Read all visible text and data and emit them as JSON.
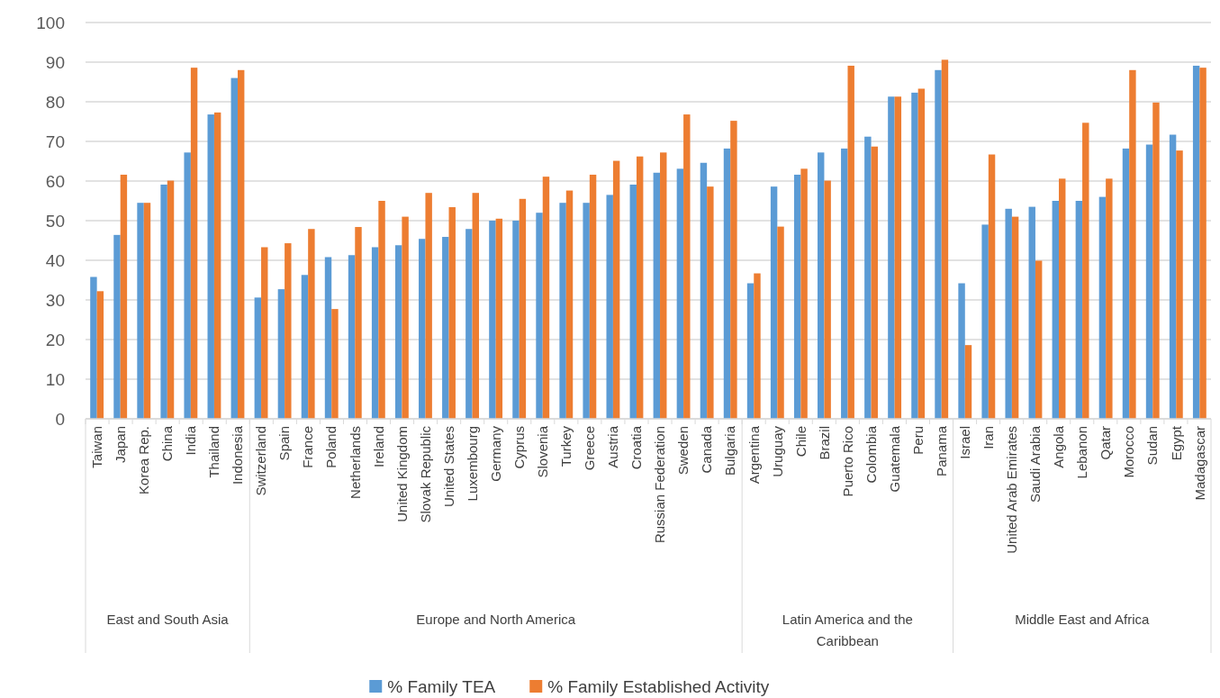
{
  "chart_data": {
    "type": "bar",
    "categories": [
      "Taiwan",
      "Japan",
      "Korea Rep.",
      "China",
      "India",
      "Thailand",
      "Indonesia",
      "Switzerland",
      "Spain",
      "France",
      "Poland",
      "Netherlands",
      "Ireland",
      "United Kingdom",
      "Slovak Republic",
      "United States",
      "Luxembourg",
      "Germany",
      "Cyprus",
      "Slovenia",
      "Turkey",
      "Greece",
      "Austria",
      "Croatia",
      "Russian Federation",
      "Sweden",
      "Canada",
      "Bulgaria",
      "Argentina",
      "Uruguay",
      "Chile",
      "Brazil",
      "Puerto Rico",
      "Colombia",
      "Guatemala",
      "Peru",
      "Panama",
      "Israel",
      "Iran",
      "United Arab Emirates",
      "Saudi Arabia",
      "Angola",
      "Lebanon",
      "Qatar",
      "Morocco",
      "Sudan",
      "Egypt",
      "Madagascar"
    ],
    "series": [
      {
        "name": "% Family TEA",
        "color": "#5b9bd5",
        "values": [
          35.8,
          46.4,
          54.5,
          59.1,
          67.2,
          76.8,
          86,
          30.6,
          32.7,
          36.3,
          40.8,
          41.3,
          43.3,
          43.8,
          45.4,
          45.9,
          47.9,
          50,
          50,
          52,
          54.5,
          54.5,
          56.5,
          59.1,
          62.1,
          63.1,
          64.6,
          68.2,
          34.2,
          58.6,
          61.6,
          67.2,
          68.2,
          71.2,
          81.3,
          82.3,
          88,
          34.2,
          49,
          53,
          53.5,
          55,
          55,
          56,
          68.2,
          69.2,
          71.7,
          89.1
        ]
      },
      {
        "name": "% Family Established Activity",
        "color": "#ed7d31",
        "values": [
          32.2,
          61.6,
          54.5,
          60.1,
          88.6,
          77.3,
          88,
          43.3,
          44.3,
          47.9,
          27.7,
          48.4,
          55,
          51,
          57,
          53.4,
          57,
          50.5,
          55.5,
          61.1,
          57.6,
          61.6,
          65.1,
          66.2,
          67.2,
          76.8,
          58.6,
          75.2,
          36.7,
          48.5,
          63.1,
          60.1,
          89.1,
          68.7,
          81.3,
          83.3,
          90.6,
          18.6,
          66.7,
          51,
          39.9,
          60.6,
          74.7,
          60.6,
          88,
          79.8,
          67.7,
          88.6
        ]
      }
    ],
    "ylim": [
      0,
      100
    ],
    "yticks": [
      0,
      10,
      20,
      30,
      40,
      50,
      60,
      70,
      80,
      90,
      100
    ],
    "grid": "y",
    "legend": "bottom",
    "annotations": [
      "East and South Asia",
      "Europe and North America",
      "Latin America and the Caribbean",
      "Middle East and Africa"
    ]
  }
}
